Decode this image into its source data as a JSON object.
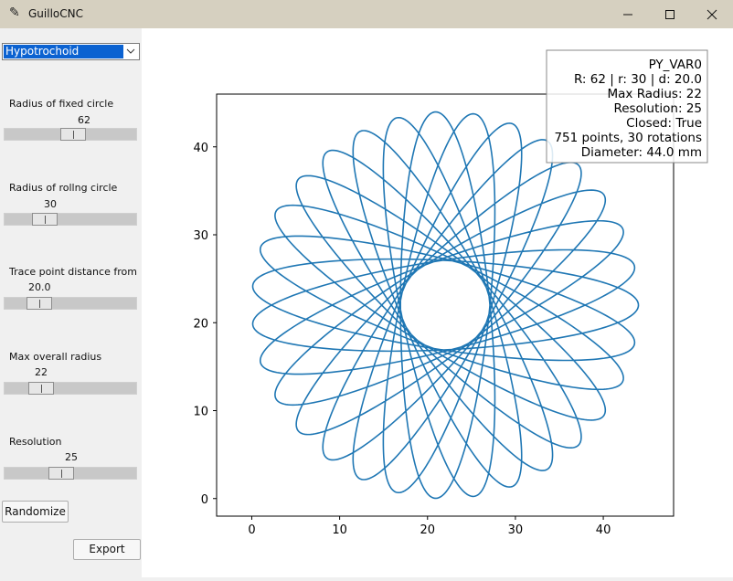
{
  "window": {
    "title": "GuilloCNC",
    "colors": {
      "titlebar": "#d6d0c0",
      "line": "#1f77b4"
    }
  },
  "sidebar": {
    "pattern_select": {
      "value": "Hypotrochoid"
    },
    "sliders": [
      {
        "label": "Radius of fixed circle",
        "value": "62",
        "level": 0.52
      },
      {
        "label": "Radius of rollng circle",
        "value": "30",
        "level": 0.25
      },
      {
        "label": "Trace point distance from r",
        "value": "20.0",
        "level": 0.2
      },
      {
        "label": "Max overall radius",
        "value": "22",
        "level": 0.22
      },
      {
        "label": "Resolution",
        "value": "25",
        "level": 0.41
      }
    ],
    "randomize_label": "Randomize",
    "export_label": "Export"
  },
  "plot": {
    "info_lines": [
      "PY_VAR0",
      "R: 62 | r: 30 | d: 20.0",
      "Max Radius: 22",
      "Resolution: 25",
      "Closed: True",
      "751 points, 30 rotations",
      "Diameter: 44.0 mm"
    ]
  },
  "chart_data": {
    "type": "line",
    "title": "",
    "xlabel": "",
    "ylabel": "",
    "xlim": [
      -4,
      48
    ],
    "ylim": [
      -2,
      46
    ],
    "xticks": [
      "0",
      "10",
      "20",
      "30",
      "40"
    ],
    "yticks": [
      "0",
      "10",
      "20",
      "30",
      "40"
    ],
    "grid": false,
    "legend": "none",
    "curve": {
      "kind": "hypotrochoid",
      "R": 62,
      "r": 30,
      "d": 20.0,
      "center": [
        22,
        22
      ],
      "max_radius": 22,
      "points": 751,
      "rotations": 30,
      "closed": true
    }
  }
}
